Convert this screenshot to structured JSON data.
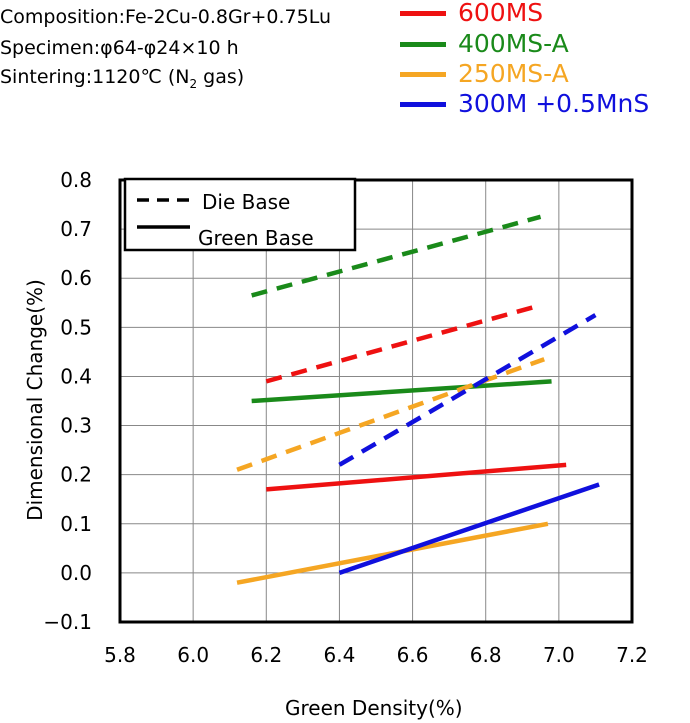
{
  "header": {
    "composition": "Composition:Fe-2Cu-0.8Gr+0.75Lu",
    "specimen": "Specimen:φ64-φ24×10 h",
    "sintering_prefix": "Sintering:1120℃ (N",
    "sintering_sub": "2",
    "sintering_suffix": " gas)"
  },
  "legend_styles": {
    "dashed": "Die Base",
    "solid": "Green Base"
  },
  "colors": {
    "600MS": "#ee1111",
    "400MS-A": "#1a8a1a",
    "250MS-A": "#f5a623",
    "300M +0.5MnS": "#1010dd"
  },
  "chart_data": {
    "type": "line",
    "xlabel": "Green Density(%)",
    "ylabel": "Dimensional Change(%)",
    "xlim": [
      5.8,
      7.2
    ],
    "ylim": [
      -0.1,
      0.8
    ],
    "xticks": [
      "5.8",
      "6.0",
      "6.2",
      "6.4",
      "6.6",
      "6.8",
      "7.0",
      "7.2"
    ],
    "yticks": [
      "−0.1",
      "0.0",
      "0.1",
      "0.2",
      "0.3",
      "0.4",
      "0.5",
      "0.6",
      "0.7",
      "0.8"
    ],
    "grid": true,
    "legend_position": "top-left",
    "series": [
      {
        "name": "600MS",
        "color": "#ee1111",
        "die_base": {
          "x": [
            6.2,
            6.95
          ],
          "y": [
            0.39,
            0.545
          ]
        },
        "green_base": {
          "x": [
            6.2,
            7.02
          ],
          "y": [
            0.17,
            0.22
          ]
        }
      },
      {
        "name": "400MS-A",
        "color": "#1a8a1a",
        "die_base": {
          "x": [
            6.16,
            6.95
          ],
          "y": [
            0.565,
            0.725
          ]
        },
        "green_base": {
          "x": [
            6.16,
            6.98
          ],
          "y": [
            0.35,
            0.39
          ]
        }
      },
      {
        "name": "250MS-A",
        "color": "#f5a623",
        "die_base": {
          "x": [
            6.12,
            6.96
          ],
          "y": [
            0.21,
            0.435
          ]
        },
        "green_base": {
          "x": [
            6.12,
            6.97
          ],
          "y": [
            -0.02,
            0.1
          ]
        }
      },
      {
        "name": "300M  +0.5MnS",
        "color": "#1010dd",
        "die_base": {
          "x": [
            6.4,
            7.1
          ],
          "y": [
            0.22,
            0.525
          ]
        },
        "green_base": {
          "x": [
            6.4,
            7.11
          ],
          "y": [
            0.0,
            0.18
          ]
        }
      }
    ]
  }
}
